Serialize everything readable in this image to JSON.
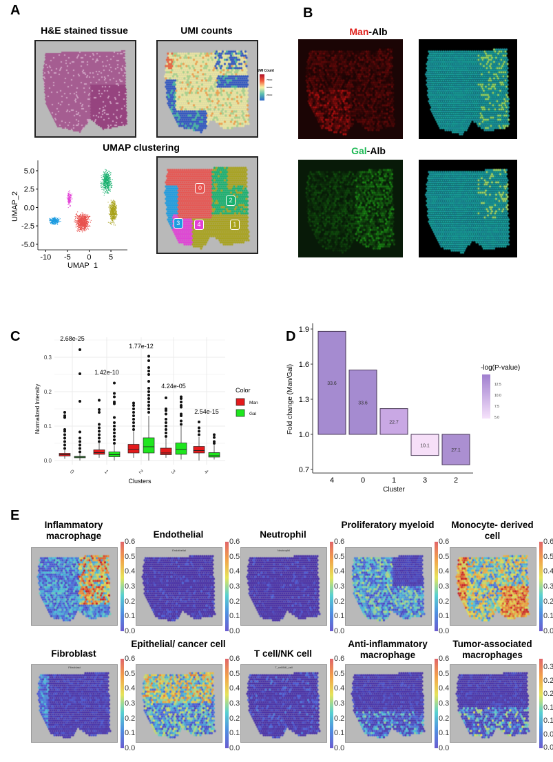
{
  "panel_labels": {
    "a": "A",
    "b": "B",
    "c": "C",
    "d": "D",
    "e": "E"
  },
  "panel_a": {
    "he_title": "H&E stained tissue",
    "umi_title": "UMI counts",
    "umi_legend": {
      "title": "UMI Count",
      "ticks": [
        "75000",
        "50000",
        "25000"
      ]
    },
    "umap_title": "UMAP clustering",
    "umap_plot": {
      "xlabel": "UMAP_1",
      "ylabel": "UMAP_2",
      "xticks": [
        "-10",
        "-5",
        "0",
        "5"
      ],
      "yticks": [
        "5.0",
        "2.5",
        "0.0",
        "-2.5",
        "-5.0"
      ]
    },
    "cluster_labels": [
      {
        "id": "0",
        "color": "#e8534f"
      },
      {
        "id": "1",
        "color": "#a8a21a"
      },
      {
        "id": "2",
        "color": "#18b06e"
      },
      {
        "id": "3",
        "color": "#1c9be0"
      },
      {
        "id": "4",
        "color": "#e23fd6"
      }
    ]
  },
  "panel_b": {
    "title1_red": "Man",
    "title1_rest": "-Alb",
    "title2_green": "Gal",
    "title2_rest": "-Alb",
    "red": "#e0201b",
    "green": "#1db954"
  },
  "chart_data": [
    {
      "type": "box",
      "xlabel": "Clusters",
      "ylabel": "Normalized Intensity",
      "categories": [
        "0",
        "1",
        "2",
        "3",
        "4"
      ],
      "ylim": [
        0,
        0.34
      ],
      "yticks": [
        "0.0",
        "0.1",
        "0.2",
        "0.3"
      ],
      "grid": true,
      "legend": {
        "title": "Color",
        "placement": "right",
        "entries": [
          {
            "name": "Man",
            "color": "#e41a1c"
          },
          {
            "name": "Gal",
            "color": "#1ee61e"
          }
        ]
      },
      "annotations": [
        "2.68e-25",
        "1.42e-10",
        "1.77e-12",
        "4.24e-05",
        "2.54e-15"
      ],
      "series": [
        {
          "name": "Man",
          "stats": [
            {
              "wl": 0.005,
              "q1": 0.013,
              "med": 0.017,
              "q3": 0.021,
              "wh": 0.03,
              "out": [
                0.035,
                0.045,
                0.055,
                0.065,
                0.075,
                0.085,
                0.09,
                0.125,
                0.13,
                0.14
              ]
            },
            {
              "wl": 0.008,
              "q1": 0.018,
              "med": 0.023,
              "q3": 0.031,
              "wh": 0.05,
              "out": [
                0.055,
                0.065,
                0.075,
                0.085,
                0.095,
                0.105,
                0.14,
                0.148,
                0.175
              ]
            },
            {
              "wl": 0.008,
              "q1": 0.022,
              "med": 0.032,
              "q3": 0.047,
              "wh": 0.085,
              "out": [
                0.09,
                0.1,
                0.11,
                0.12,
                0.13,
                0.14,
                0.15,
                0.16,
                0.167
              ]
            },
            {
              "wl": 0.008,
              "q1": 0.017,
              "med": 0.022,
              "q3": 0.036,
              "wh": 0.065,
              "out": [
                0.07,
                0.08,
                0.09,
                0.1,
                0.11,
                0.12,
                0.135,
                0.145,
                0.15,
                0.182
              ]
            },
            {
              "wl": 0.0,
              "q1": 0.022,
              "med": 0.029,
              "q3": 0.041,
              "wh": 0.068,
              "out": [
                0.075,
                0.085,
                0.095,
                0.112
              ]
            }
          ]
        },
        {
          "name": "Gal",
          "stats": [
            {
              "wl": 0.0,
              "q1": 0.008,
              "med": 0.01,
              "q3": 0.012,
              "wh": 0.02,
              "out": [
                0.025,
                0.035,
                0.045,
                0.055,
                0.065,
                0.083,
                0.172,
                0.252,
                0.322
              ]
            },
            {
              "wl": 0.0,
              "q1": 0.011,
              "med": 0.017,
              "q3": 0.025,
              "wh": 0.045,
              "out": [
                0.05,
                0.06,
                0.07,
                0.08,
                0.09,
                0.1,
                0.11,
                0.125,
                0.165,
                0.17,
                0.185,
                0.195,
                0.225
              ]
            },
            {
              "wl": 0.0,
              "q1": 0.022,
              "med": 0.04,
              "q3": 0.066,
              "wh": 0.13,
              "out": [
                0.14,
                0.15,
                0.16,
                0.17,
                0.18,
                0.19,
                0.2,
                0.21,
                0.23,
                0.25,
                0.26,
                0.27,
                0.29,
                0.303
              ]
            },
            {
              "wl": 0.003,
              "q1": 0.018,
              "med": 0.032,
              "q3": 0.051,
              "wh": 0.1,
              "out": [
                0.105,
                0.115,
                0.13,
                0.135,
                0.155,
                0.16,
                0.17,
                0.18,
                0.185
              ]
            },
            {
              "wl": 0.003,
              "q1": 0.01,
              "med": 0.014,
              "q3": 0.023,
              "wh": 0.045,
              "out": [
                0.05,
                0.055,
                0.067,
                0.075
              ]
            }
          ]
        }
      ]
    },
    {
      "type": "bar",
      "xlabel": "Cluster",
      "ylabel": "Fold change (Man/Gal)",
      "categories": [
        "4",
        "0",
        "1",
        "3",
        "2"
      ],
      "values": [
        1.88,
        1.55,
        1.22,
        0.82,
        0.74
      ],
      "baseline": 1.0,
      "bar_labels": [
        "33.6",
        "33.6",
        "22.7",
        "10.1",
        "27.1"
      ],
      "bar_colors": [
        "#a58bd0",
        "#a58bd0",
        "#c9a8e4",
        "#f6dff8",
        "#ab8fd1"
      ],
      "ylim": [
        0.7,
        1.9
      ],
      "yticks": [
        "0.7",
        "1.0",
        "1.3",
        "1.6",
        "1.9"
      ],
      "legend": {
        "title": "-log(P-value)",
        "placement": "right",
        "ticks": [
          "12.5",
          "10.0",
          "7.5",
          "5.0"
        ]
      }
    }
  ],
  "panel_e": [
    {
      "title": "Inflammatory macrophage",
      "sub": "",
      "ticks": [
        "0.6",
        "0.5",
        "0.4",
        "0.3",
        "0.2",
        "0.1",
        "0.0"
      ]
    },
    {
      "title": "Endothelial",
      "sub": "Endothelial",
      "ticks": [
        "0.6",
        "0.5",
        "0.4",
        "0.3",
        "0.2",
        "0.1",
        "0.0"
      ]
    },
    {
      "title": "Neutrophil",
      "sub": "Neutrophil",
      "ticks": [
        "0.6",
        "0.5",
        "0.4",
        "0.3",
        "0.2",
        "0.1",
        "0.0"
      ]
    },
    {
      "title": "Proliferatory myeloid",
      "sub": "",
      "ticks": [
        "0.6",
        "0.5",
        "0.4",
        "0.3",
        "0.2",
        "0.1",
        "0.0"
      ]
    },
    {
      "title": "Monocyte- derived cell",
      "sub": "",
      "ticks": [
        "0.6",
        "0.5",
        "0.4",
        "0.3",
        "0.2",
        "0.1",
        "0.0"
      ]
    },
    {
      "title": "Fibroblast",
      "sub": "Fibroblast",
      "ticks": [
        "0.6",
        "0.5",
        "0.4",
        "0.3",
        "0.2",
        "0.1",
        "0.0"
      ]
    },
    {
      "title": "Epithelial/ cancer cell",
      "sub": "",
      "ticks": [
        "0.6",
        "0.5",
        "0.4",
        "0.3",
        "0.2",
        "0.1",
        "0.0"
      ]
    },
    {
      "title": "T cell/NK cell",
      "sub": "T_cell/NK_cell",
      "ticks": [
        "0.6",
        "0.5",
        "0.4",
        "0.3",
        "0.2",
        "0.1",
        "0.0"
      ]
    },
    {
      "title": "Anti-inflammatory macrophage",
      "sub": "",
      "ticks": [
        "0.6",
        "0.5",
        "0.4",
        "0.3",
        "0.2",
        "0.1",
        "0.0"
      ]
    },
    {
      "title": "Tumor-associated macrophages",
      "sub": "",
      "ticks": [
        "0.30",
        "0.25",
        "0.20",
        "0.15",
        "0.10",
        "0.05",
        "0.00"
      ]
    }
  ]
}
